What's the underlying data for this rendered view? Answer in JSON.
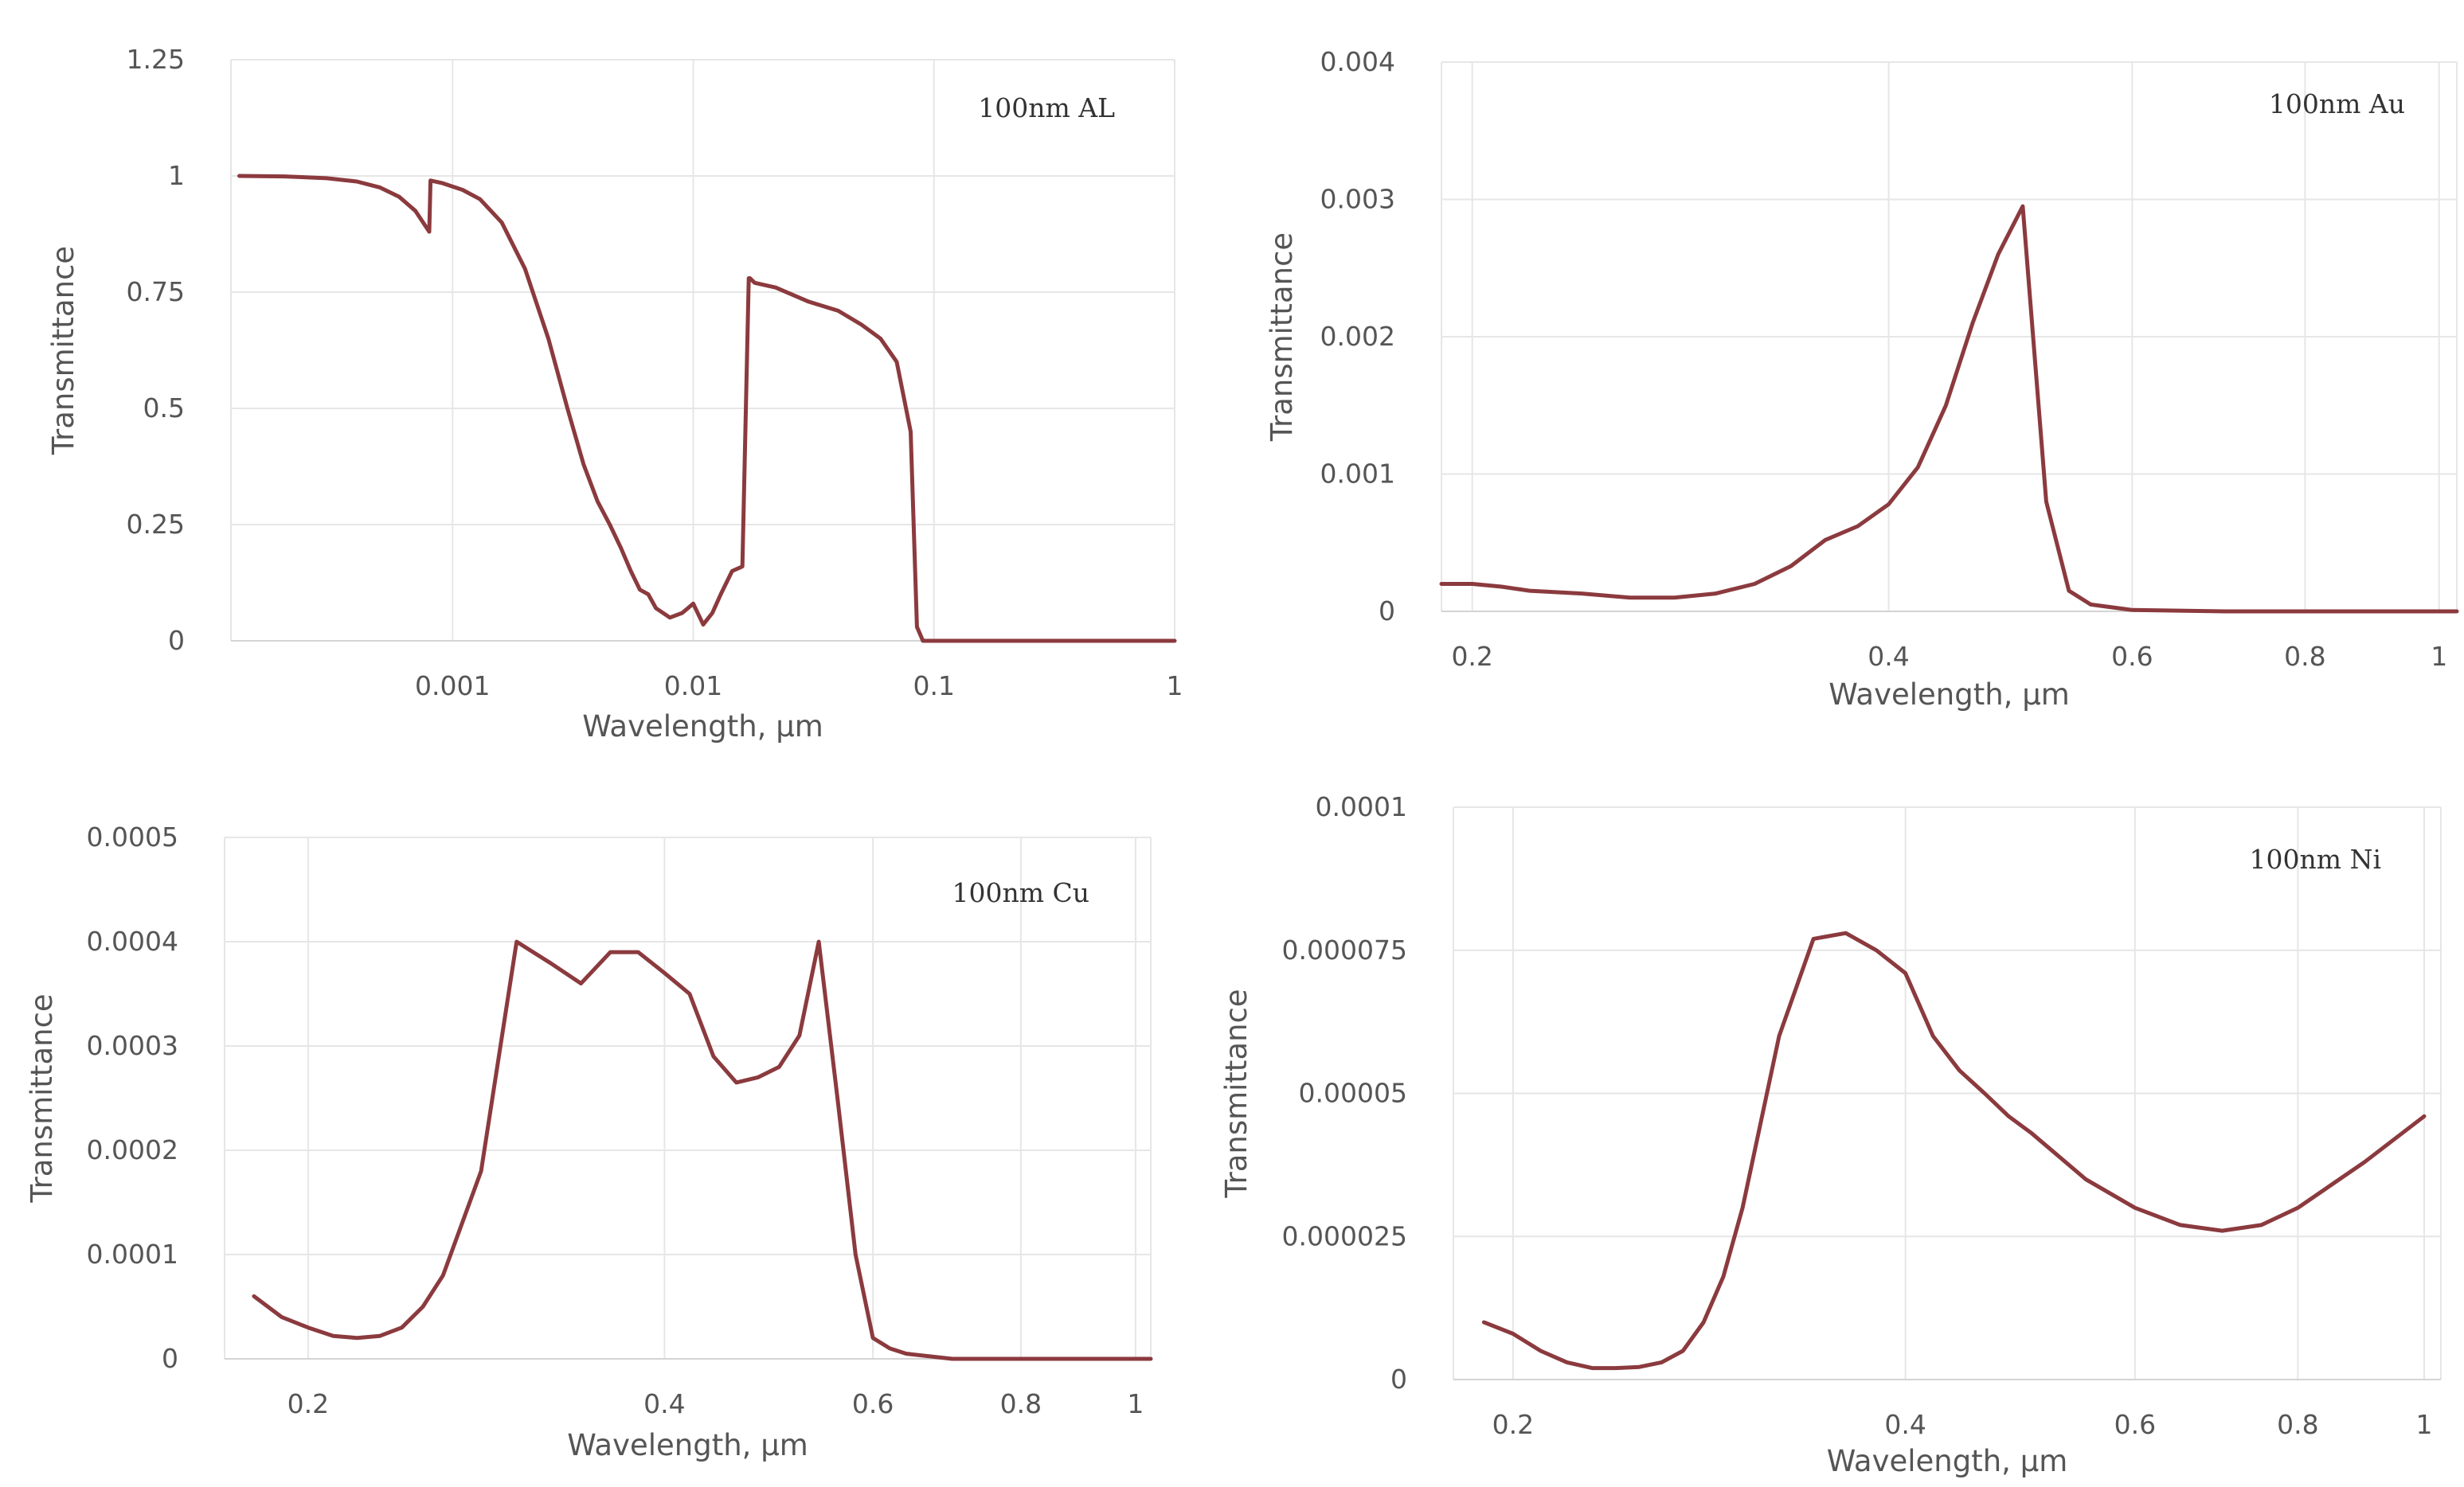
{
  "colors": {
    "series": "#8b3a3e",
    "grid": "#e6e6e6",
    "text": "#555555"
  },
  "chart_data": [
    {
      "id": "al",
      "type": "line",
      "annotation": "100nm AL",
      "xlabel": "Wavelength, μm",
      "ylabel": "Transmittance",
      "xscale": "log",
      "xlim": [
        0.00012,
        1.0
      ],
      "ylim": [
        0,
        1.25
      ],
      "xticks": [
        {
          "v": 0.001,
          "label": "0.001"
        },
        {
          "v": 0.01,
          "label": "0.01"
        },
        {
          "v": 0.1,
          "label": "0.1"
        },
        {
          "v": 1,
          "label": "1"
        }
      ],
      "yticks": [
        {
          "v": 0,
          "label": "0"
        },
        {
          "v": 0.25,
          "label": "0.25"
        },
        {
          "v": 0.5,
          "label": "0.5"
        },
        {
          "v": 0.75,
          "label": "0.75"
        },
        {
          "v": 1,
          "label": "1"
        },
        {
          "v": 1.25,
          "label": "1.25"
        }
      ],
      "grid": true,
      "series": [
        {
          "x": [
            0.00013,
            0.0002,
            0.0003,
            0.0004,
            0.0005,
            0.0006,
            0.0007,
            0.0008,
            0.00081,
            0.0009,
            0.0011,
            0.0013,
            0.0016,
            0.002,
            0.0025,
            0.003,
            0.0035,
            0.004,
            0.0045,
            0.005,
            0.0055,
            0.006,
            0.0065,
            0.007,
            0.008,
            0.009,
            0.01,
            0.011,
            0.012,
            0.013,
            0.0145,
            0.016,
            0.017,
            0.0172,
            0.018,
            0.022,
            0.03,
            0.04,
            0.05,
            0.06,
            0.07,
            0.08,
            0.085,
            0.09,
            0.1,
            0.2,
            0.5,
            1.0
          ],
          "y": [
            1.0,
            0.999,
            0.995,
            0.988,
            0.975,
            0.955,
            0.925,
            0.88,
            0.99,
            0.985,
            0.97,
            0.95,
            0.9,
            0.8,
            0.65,
            0.5,
            0.38,
            0.3,
            0.25,
            0.2,
            0.15,
            0.11,
            0.1,
            0.07,
            0.05,
            0.06,
            0.08,
            0.035,
            0.06,
            0.1,
            0.15,
            0.16,
            0.78,
            0.78,
            0.77,
            0.76,
            0.73,
            0.71,
            0.68,
            0.65,
            0.6,
            0.45,
            0.03,
            0.0,
            0.0,
            0.0,
            0.0,
            0.0
          ]
        }
      ]
    },
    {
      "id": "au",
      "type": "line",
      "annotation": "100nm Au",
      "xlabel": "Wavelength, μm",
      "ylabel": "Transmittance",
      "xscale": "log",
      "xlim": [
        0.19,
        1.03
      ],
      "ylim": [
        0,
        0.004
      ],
      "xticks": [
        {
          "v": 0.2,
          "label": "0.2"
        },
        {
          "v": 0.4,
          "label": "0.4"
        },
        {
          "v": 0.6,
          "label": "0.6"
        },
        {
          "v": 0.8,
          "label": "0.8"
        },
        {
          "v": 1,
          "label": "1"
        }
      ],
      "yticks": [
        {
          "v": 0,
          "label": "0"
        },
        {
          "v": 0.001,
          "label": "0.001"
        },
        {
          "v": 0.002,
          "label": "0.002"
        },
        {
          "v": 0.003,
          "label": "0.003"
        },
        {
          "v": 0.004,
          "label": "0.004"
        }
      ],
      "grid": true,
      "series": [
        {
          "x": [
            0.19,
            0.2,
            0.21,
            0.22,
            0.24,
            0.26,
            0.28,
            0.3,
            0.32,
            0.34,
            0.36,
            0.38,
            0.4,
            0.42,
            0.44,
            0.46,
            0.48,
            0.5,
            0.52,
            0.54,
            0.56,
            0.6,
            0.7,
            0.8,
            1.0,
            1.03
          ],
          "y": [
            0.0002,
            0.0002,
            0.00018,
            0.00015,
            0.00013,
            0.0001,
            0.0001,
            0.00013,
            0.0002,
            0.00033,
            0.00052,
            0.00062,
            0.00078,
            0.00105,
            0.0015,
            0.0021,
            0.0026,
            0.00295,
            0.0008,
            0.00015,
            5e-05,
            1e-05,
            0.0,
            0.0,
            0.0,
            0.0
          ]
        }
      ]
    },
    {
      "id": "cu",
      "type": "line",
      "annotation": "100nm Cu",
      "xlabel": "Wavelength, μm",
      "ylabel": "Transmittance",
      "xscale": "log",
      "xlim": [
        0.17,
        1.03
      ],
      "ylim": [
        0,
        0.0005
      ],
      "xticks": [
        {
          "v": 0.2,
          "label": "0.2"
        },
        {
          "v": 0.4,
          "label": "0.4"
        },
        {
          "v": 0.6,
          "label": "0.6"
        },
        {
          "v": 0.8,
          "label": "0.8"
        },
        {
          "v": 1,
          "label": "1"
        }
      ],
      "yticks": [
        {
          "v": 0,
          "label": "0"
        },
        {
          "v": 0.0001,
          "label": "0.0001"
        },
        {
          "v": 0.0002,
          "label": "0.0002"
        },
        {
          "v": 0.0003,
          "label": "0.0003"
        },
        {
          "v": 0.0004,
          "label": "0.0004"
        },
        {
          "v": 0.0005,
          "label": "0.0005"
        }
      ],
      "grid": true,
      "series": [
        {
          "x": [
            0.18,
            0.19,
            0.2,
            0.21,
            0.22,
            0.23,
            0.24,
            0.25,
            0.26,
            0.28,
            0.3,
            0.32,
            0.34,
            0.36,
            0.38,
            0.4,
            0.42,
            0.44,
            0.46,
            0.48,
            0.5,
            0.52,
            0.54,
            0.56,
            0.58,
            0.6,
            0.62,
            0.64,
            0.7,
            0.8,
            1.0,
            1.03
          ],
          "y": [
            6e-05,
            4e-05,
            3e-05,
            2.2e-05,
            2e-05,
            2.2e-05,
            3e-05,
            5e-05,
            8e-05,
            0.00018,
            0.0004,
            0.00038,
            0.00036,
            0.00039,
            0.00039,
            0.00037,
            0.00035,
            0.00029,
            0.000265,
            0.00027,
            0.00028,
            0.00031,
            0.0004,
            0.00025,
            0.0001,
            2e-05,
            1e-05,
            5e-06,
            0.0,
            0.0,
            0.0,
            0.0
          ]
        }
      ]
    },
    {
      "id": "ni",
      "type": "line",
      "annotation": "100nm Ni",
      "xlabel": "Wavelength, μm",
      "ylabel": "Transmittance",
      "xscale": "log",
      "xlim": [
        0.18,
        1.03
      ],
      "ylim": [
        0,
        0.0001
      ],
      "xticks": [
        {
          "v": 0.2,
          "label": "0.2"
        },
        {
          "v": 0.4,
          "label": "0.4"
        },
        {
          "v": 0.6,
          "label": "0.6"
        },
        {
          "v": 0.8,
          "label": "0.8"
        },
        {
          "v": 1,
          "label": "1"
        }
      ],
      "yticks": [
        {
          "v": 0,
          "label": "0"
        },
        {
          "v": 2.5e-05,
          "label": "0.000025"
        },
        {
          "v": 5e-05,
          "label": "0.00005"
        },
        {
          "v": 7.5e-05,
          "label": "0.000075"
        },
        {
          "v": 0.0001,
          "label": "0.0001"
        }
      ],
      "grid": true,
      "series": [
        {
          "x": [
            0.19,
            0.2,
            0.21,
            0.22,
            0.23,
            0.24,
            0.25,
            0.26,
            0.27,
            0.28,
            0.29,
            0.3,
            0.32,
            0.34,
            0.36,
            0.38,
            0.4,
            0.42,
            0.44,
            0.46,
            0.48,
            0.5,
            0.55,
            0.6,
            0.65,
            0.7,
            0.75,
            0.8,
            0.9,
            1.0
          ],
          "y": [
            1e-05,
            8e-06,
            5e-06,
            3e-06,
            2e-06,
            2e-06,
            2.2e-06,
            3e-06,
            5e-06,
            1e-05,
            1.8e-05,
            3e-05,
            6e-05,
            7.7e-05,
            7.8e-05,
            7.5e-05,
            7.1e-05,
            6e-05,
            5.4e-05,
            5e-05,
            4.6e-05,
            4.3e-05,
            3.5e-05,
            3e-05,
            2.7e-05,
            2.6e-05,
            2.7e-05,
            3e-05,
            3.8e-05,
            4.6e-05
          ]
        }
      ]
    }
  ]
}
